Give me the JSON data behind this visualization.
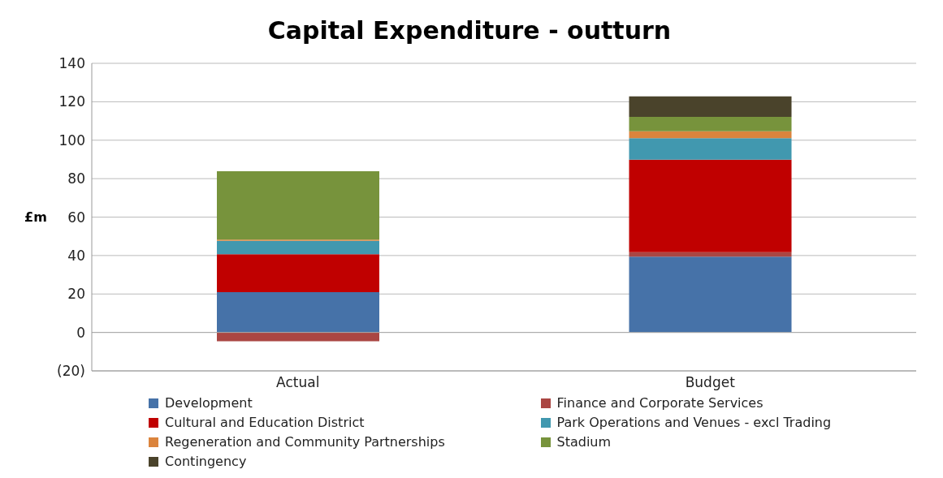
{
  "chart_data": {
    "type": "bar",
    "title": "Capital Expenditure - outturn",
    "ylabel": "£m",
    "categories": [
      "Actual",
      "Budget"
    ],
    "stacked": true,
    "series": [
      {
        "name": "Development",
        "color": "#4672a8",
        "values": [
          20.9,
          39.4
        ]
      },
      {
        "name": "Finance and Corporate Services",
        "color": "#aa4643",
        "values": [
          -4.6,
          2.3
        ]
      },
      {
        "name": "Cultural and Education District",
        "color": "#c00000",
        "values": [
          19.8,
          48.2
        ]
      },
      {
        "name": "Park Operations and Venues - excl Trading",
        "color": "#4198af",
        "values": [
          7.0,
          11.2
        ]
      },
      {
        "name": "Regeneration and Community Partnerships",
        "color": "#db843d",
        "values": [
          0.6,
          3.5
        ]
      },
      {
        "name": "Stadium",
        "color": "#77933c",
        "values": [
          35.5,
          7.5
        ]
      },
      {
        "name": "Contingency",
        "color": "#4a432b",
        "values": [
          null,
          10.7
        ]
      }
    ],
    "ylim": [
      -20,
      140
    ],
    "yticks": [
      {
        "value": -20,
        "label": "(20)"
      },
      0,
      20,
      40,
      60,
      80,
      100,
      120,
      140
    ],
    "grid": "y",
    "legend": "bottom"
  }
}
